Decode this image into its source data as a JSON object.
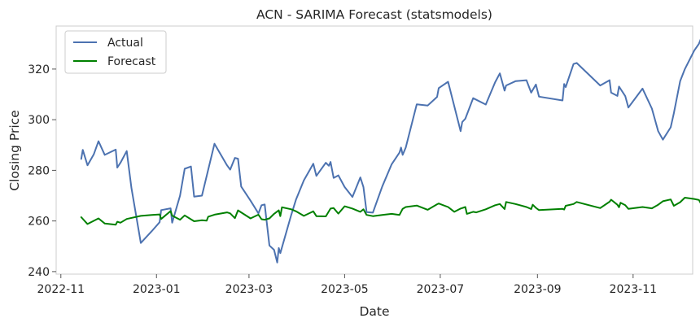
{
  "chart_data": {
    "type": "line",
    "title": "ACN - SARIMA Forecast (statsmodels)",
    "xlabel": "Date",
    "ylabel": "Closing Price",
    "xlim": [
      "2022-10-29",
      "2023-12-09"
    ],
    "ylim": [
      239,
      337
    ],
    "x_ticks": [
      "2022-11",
      "2023-01",
      "2023-03",
      "2023-05",
      "2023-07",
      "2023-09",
      "2023-11"
    ],
    "y_ticks": [
      240,
      260,
      280,
      300,
      320
    ],
    "grid": false,
    "legend_position": "top-left",
    "series": [
      {
        "name": "Actual",
        "color": "#4c72b0",
        "points": [
          [
            "2022-11-14",
            284.5
          ],
          [
            "2022-11-15",
            288.1
          ],
          [
            "2022-11-18",
            282.0
          ],
          [
            "2022-11-22",
            286.3
          ],
          [
            "2022-11-25",
            291.5
          ],
          [
            "2022-11-29",
            286.1
          ],
          [
            "2022-12-06",
            288.2
          ],
          [
            "2022-12-07",
            281.1
          ],
          [
            "2022-12-09",
            283.0
          ],
          [
            "2022-12-13",
            287.6
          ],
          [
            "2022-12-16",
            273.0
          ],
          [
            "2022-12-22",
            251.3
          ],
          [
            "2022-12-29",
            256.0
          ],
          [
            "2023-01-03",
            259.5
          ],
          [
            "2023-01-04",
            264.3
          ],
          [
            "2023-01-10",
            265.0
          ],
          [
            "2023-01-11",
            259.3
          ],
          [
            "2023-01-16",
            270.0
          ],
          [
            "2023-01-19",
            280.6
          ],
          [
            "2023-01-23",
            281.5
          ],
          [
            "2023-01-25",
            269.6
          ],
          [
            "2023-01-30",
            270.0
          ],
          [
            "2023-02-07",
            290.5
          ],
          [
            "2023-02-15",
            282.0
          ],
          [
            "2023-02-17",
            280.3
          ],
          [
            "2023-02-20",
            284.9
          ],
          [
            "2023-02-22",
            284.6
          ],
          [
            "2023-02-24",
            273.6
          ],
          [
            "2023-03-02",
            268.0
          ],
          [
            "2023-03-07",
            263.0
          ],
          [
            "2023-03-09",
            266.2
          ],
          [
            "2023-03-11",
            266.5
          ],
          [
            "2023-03-14",
            250.3
          ],
          [
            "2023-03-17",
            248.6
          ],
          [
            "2023-03-19",
            243.6
          ],
          [
            "2023-03-20",
            249.3
          ],
          [
            "2023-03-21",
            247.3
          ],
          [
            "2023-03-28",
            262.5
          ],
          [
            "2023-03-31",
            268.5
          ],
          [
            "2023-04-05",
            276.0
          ],
          [
            "2023-04-11",
            282.6
          ],
          [
            "2023-04-13",
            277.8
          ],
          [
            "2023-04-19",
            283.0
          ],
          [
            "2023-04-21",
            281.8
          ],
          [
            "2023-04-22",
            283.3
          ],
          [
            "2023-04-24",
            277.0
          ],
          [
            "2023-04-27",
            278.0
          ],
          [
            "2023-05-01",
            273.4
          ],
          [
            "2023-05-06",
            269.5
          ],
          [
            "2023-05-11",
            277.2
          ],
          [
            "2023-05-13",
            273.4
          ],
          [
            "2023-05-15",
            263.5
          ],
          [
            "2023-05-19",
            263.3
          ],
          [
            "2023-05-25",
            273.6
          ],
          [
            "2023-05-31",
            282.4
          ],
          [
            "2023-06-05",
            287.0
          ],
          [
            "2023-06-06",
            289.0
          ],
          [
            "2023-06-07",
            286.1
          ],
          [
            "2023-06-09",
            289.0
          ],
          [
            "2023-06-16",
            306.1
          ],
          [
            "2023-06-23",
            305.6
          ],
          [
            "2023-06-29",
            309.0
          ],
          [
            "2023-06-30",
            312.5
          ],
          [
            "2023-07-06",
            315.0
          ],
          [
            "2023-07-14",
            295.5
          ],
          [
            "2023-07-15",
            299.1
          ],
          [
            "2023-07-17",
            300.4
          ],
          [
            "2023-07-22",
            308.5
          ],
          [
            "2023-07-30",
            306.0
          ],
          [
            "2023-08-05",
            314.8
          ],
          [
            "2023-08-08",
            318.3
          ],
          [
            "2023-08-11",
            311.5
          ],
          [
            "2023-08-12",
            313.5
          ],
          [
            "2023-08-18",
            315.2
          ],
          [
            "2023-08-25",
            315.6
          ],
          [
            "2023-08-28",
            310.7
          ],
          [
            "2023-08-31",
            313.9
          ],
          [
            "2023-09-02",
            309.1
          ],
          [
            "2023-09-17",
            307.6
          ],
          [
            "2023-09-18",
            314.1
          ],
          [
            "2023-09-19",
            312.9
          ],
          [
            "2023-09-24",
            322.0
          ],
          [
            "2023-09-26",
            322.4
          ],
          [
            "2023-10-11",
            313.5
          ],
          [
            "2023-10-17",
            315.6
          ],
          [
            "2023-10-18",
            310.7
          ],
          [
            "2023-10-22",
            309.4
          ],
          [
            "2023-10-23",
            313.1
          ],
          [
            "2023-10-27",
            309.3
          ],
          [
            "2023-10-29",
            304.8
          ],
          [
            "2023-11-07",
            312.3
          ],
          [
            "2023-11-13",
            304.4
          ],
          [
            "2023-11-17",
            295.5
          ],
          [
            "2023-11-20",
            292.1
          ],
          [
            "2023-11-25",
            297.0
          ],
          [
            "2023-11-27",
            302.6
          ],
          [
            "2023-12-01",
            315.2
          ],
          [
            "2023-12-04",
            320.0
          ],
          [
            "2023-12-10",
            327.3
          ],
          [
            "2023-12-13",
            330.0
          ],
          [
            "2023-12-15",
            333.2
          ]
        ]
      },
      {
        "name": "Forecast",
        "color": "#008000",
        "points": [
          [
            "2022-11-14",
            261.5
          ],
          [
            "2022-11-18",
            258.8
          ],
          [
            "2022-11-25",
            261.0
          ],
          [
            "2022-11-29",
            259.0
          ],
          [
            "2022-12-06",
            258.5
          ],
          [
            "2022-12-07",
            259.7
          ],
          [
            "2022-12-09",
            259.3
          ],
          [
            "2022-12-13",
            260.8
          ],
          [
            "2022-12-22",
            262.0
          ],
          [
            "2022-12-29",
            262.4
          ],
          [
            "2023-01-03",
            262.6
          ],
          [
            "2023-01-04",
            260.8
          ],
          [
            "2023-01-10",
            263.9
          ],
          [
            "2023-01-11",
            262.1
          ],
          [
            "2023-01-16",
            260.5
          ],
          [
            "2023-01-19",
            262.2
          ],
          [
            "2023-01-25",
            259.9
          ],
          [
            "2023-01-30",
            260.3
          ],
          [
            "2023-02-02",
            260.1
          ],
          [
            "2023-02-03",
            261.7
          ],
          [
            "2023-02-07",
            262.5
          ],
          [
            "2023-02-15",
            263.4
          ],
          [
            "2023-02-17",
            263.0
          ],
          [
            "2023-02-20",
            261.1
          ],
          [
            "2023-02-22",
            264.2
          ],
          [
            "2023-03-02",
            261.0
          ],
          [
            "2023-03-07",
            262.5
          ],
          [
            "2023-03-09",
            260.7
          ],
          [
            "2023-03-11",
            260.5
          ],
          [
            "2023-03-14",
            261.0
          ],
          [
            "2023-03-17",
            262.8
          ],
          [
            "2023-03-20",
            264.2
          ],
          [
            "2023-03-21",
            261.9
          ],
          [
            "2023-03-22",
            265.4
          ],
          [
            "2023-03-28",
            264.6
          ],
          [
            "2023-03-31",
            263.8
          ],
          [
            "2023-04-05",
            262.0
          ],
          [
            "2023-04-11",
            263.8
          ],
          [
            "2023-04-13",
            261.9
          ],
          [
            "2023-04-19",
            261.8
          ],
          [
            "2023-04-22",
            264.9
          ],
          [
            "2023-04-24",
            265.1
          ],
          [
            "2023-04-27",
            262.9
          ],
          [
            "2023-05-01",
            265.8
          ],
          [
            "2023-05-06",
            264.9
          ],
          [
            "2023-05-11",
            263.6
          ],
          [
            "2023-05-13",
            264.6
          ],
          [
            "2023-05-15",
            262.4
          ],
          [
            "2023-05-19",
            261.9
          ],
          [
            "2023-05-25",
            262.4
          ],
          [
            "2023-05-31",
            262.8
          ],
          [
            "2023-06-05",
            262.4
          ],
          [
            "2023-06-07",
            264.8
          ],
          [
            "2023-06-09",
            265.5
          ],
          [
            "2023-06-16",
            266.1
          ],
          [
            "2023-06-23",
            264.4
          ],
          [
            "2023-06-29",
            266.6
          ],
          [
            "2023-06-30",
            266.9
          ],
          [
            "2023-07-06",
            265.5
          ],
          [
            "2023-07-10",
            263.6
          ],
          [
            "2023-07-14",
            264.9
          ],
          [
            "2023-07-17",
            265.5
          ],
          [
            "2023-07-18",
            262.8
          ],
          [
            "2023-07-22",
            263.6
          ],
          [
            "2023-07-24",
            263.4
          ],
          [
            "2023-07-30",
            264.6
          ],
          [
            "2023-08-05",
            266.2
          ],
          [
            "2023-08-08",
            266.7
          ],
          [
            "2023-08-11",
            264.7
          ],
          [
            "2023-08-12",
            267.5
          ],
          [
            "2023-08-18",
            266.7
          ],
          [
            "2023-08-25",
            265.5
          ],
          [
            "2023-08-28",
            264.7
          ],
          [
            "2023-08-29",
            266.4
          ],
          [
            "2023-08-31",
            265.2
          ],
          [
            "2023-09-02",
            264.3
          ],
          [
            "2023-09-17",
            264.8
          ],
          [
            "2023-09-18",
            264.5
          ],
          [
            "2023-09-19",
            266.0
          ],
          [
            "2023-09-24",
            266.7
          ],
          [
            "2023-09-26",
            267.5
          ],
          [
            "2023-10-11",
            265.1
          ],
          [
            "2023-10-17",
            267.6
          ],
          [
            "2023-10-18",
            268.4
          ],
          [
            "2023-10-22",
            266.4
          ],
          [
            "2023-10-23",
            265.4
          ],
          [
            "2023-10-24",
            267.2
          ],
          [
            "2023-10-27",
            266.2
          ],
          [
            "2023-10-29",
            264.8
          ],
          [
            "2023-11-07",
            265.5
          ],
          [
            "2023-11-13",
            265.0
          ],
          [
            "2023-11-17",
            266.4
          ],
          [
            "2023-11-20",
            267.8
          ],
          [
            "2023-11-25",
            268.5
          ],
          [
            "2023-11-27",
            266.0
          ],
          [
            "2023-12-01",
            267.4
          ],
          [
            "2023-12-04",
            269.2
          ],
          [
            "2023-12-10",
            268.7
          ],
          [
            "2023-12-13",
            268.3
          ],
          [
            "2023-12-15",
            266.0
          ],
          [
            "2023-12-17",
            268.0
          ]
        ]
      }
    ]
  }
}
